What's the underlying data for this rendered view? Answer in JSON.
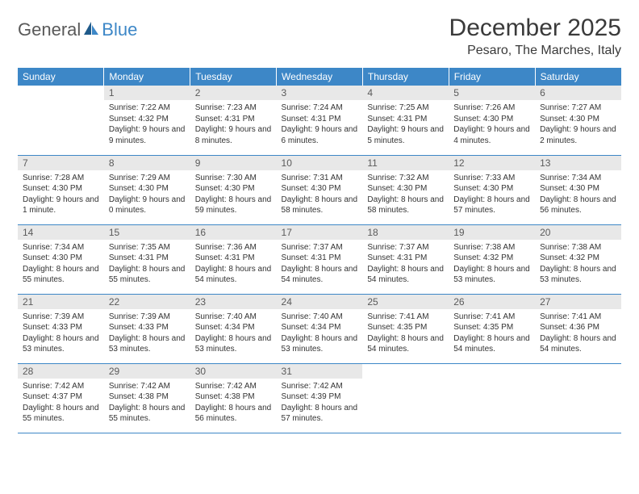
{
  "logo": {
    "text1": "General",
    "text2": "Blue"
  },
  "title": "December 2025",
  "location": "Pesaro, The Marches, Italy",
  "colors": {
    "header_bg": "#3d87c7",
    "header_text": "#ffffff",
    "daynum_bg": "#e8e8e8",
    "daynum_text": "#5a5a5a",
    "body_text": "#333333",
    "rule": "#3d87c7",
    "logo_gray": "#595959",
    "logo_blue": "#3d87c7"
  },
  "weekdays": [
    "Sunday",
    "Monday",
    "Tuesday",
    "Wednesday",
    "Thursday",
    "Friday",
    "Saturday"
  ],
  "weeks": [
    [
      {
        "empty": true
      },
      {
        "n": "1",
        "sunrise": "7:22 AM",
        "sunset": "4:32 PM",
        "daylight": "9 hours and 9 minutes."
      },
      {
        "n": "2",
        "sunrise": "7:23 AM",
        "sunset": "4:31 PM",
        "daylight": "9 hours and 8 minutes."
      },
      {
        "n": "3",
        "sunrise": "7:24 AM",
        "sunset": "4:31 PM",
        "daylight": "9 hours and 6 minutes."
      },
      {
        "n": "4",
        "sunrise": "7:25 AM",
        "sunset": "4:31 PM",
        "daylight": "9 hours and 5 minutes."
      },
      {
        "n": "5",
        "sunrise": "7:26 AM",
        "sunset": "4:30 PM",
        "daylight": "9 hours and 4 minutes."
      },
      {
        "n": "6",
        "sunrise": "7:27 AM",
        "sunset": "4:30 PM",
        "daylight": "9 hours and 2 minutes."
      }
    ],
    [
      {
        "n": "7",
        "sunrise": "7:28 AM",
        "sunset": "4:30 PM",
        "daylight": "9 hours and 1 minute."
      },
      {
        "n": "8",
        "sunrise": "7:29 AM",
        "sunset": "4:30 PM",
        "daylight": "9 hours and 0 minutes."
      },
      {
        "n": "9",
        "sunrise": "7:30 AM",
        "sunset": "4:30 PM",
        "daylight": "8 hours and 59 minutes."
      },
      {
        "n": "10",
        "sunrise": "7:31 AM",
        "sunset": "4:30 PM",
        "daylight": "8 hours and 58 minutes."
      },
      {
        "n": "11",
        "sunrise": "7:32 AM",
        "sunset": "4:30 PM",
        "daylight": "8 hours and 58 minutes."
      },
      {
        "n": "12",
        "sunrise": "7:33 AM",
        "sunset": "4:30 PM",
        "daylight": "8 hours and 57 minutes."
      },
      {
        "n": "13",
        "sunrise": "7:34 AM",
        "sunset": "4:30 PM",
        "daylight": "8 hours and 56 minutes."
      }
    ],
    [
      {
        "n": "14",
        "sunrise": "7:34 AM",
        "sunset": "4:30 PM",
        "daylight": "8 hours and 55 minutes."
      },
      {
        "n": "15",
        "sunrise": "7:35 AM",
        "sunset": "4:31 PM",
        "daylight": "8 hours and 55 minutes."
      },
      {
        "n": "16",
        "sunrise": "7:36 AM",
        "sunset": "4:31 PM",
        "daylight": "8 hours and 54 minutes."
      },
      {
        "n": "17",
        "sunrise": "7:37 AM",
        "sunset": "4:31 PM",
        "daylight": "8 hours and 54 minutes."
      },
      {
        "n": "18",
        "sunrise": "7:37 AM",
        "sunset": "4:31 PM",
        "daylight": "8 hours and 54 minutes."
      },
      {
        "n": "19",
        "sunrise": "7:38 AM",
        "sunset": "4:32 PM",
        "daylight": "8 hours and 53 minutes."
      },
      {
        "n": "20",
        "sunrise": "7:38 AM",
        "sunset": "4:32 PM",
        "daylight": "8 hours and 53 minutes."
      }
    ],
    [
      {
        "n": "21",
        "sunrise": "7:39 AM",
        "sunset": "4:33 PM",
        "daylight": "8 hours and 53 minutes."
      },
      {
        "n": "22",
        "sunrise": "7:39 AM",
        "sunset": "4:33 PM",
        "daylight": "8 hours and 53 minutes."
      },
      {
        "n": "23",
        "sunrise": "7:40 AM",
        "sunset": "4:34 PM",
        "daylight": "8 hours and 53 minutes."
      },
      {
        "n": "24",
        "sunrise": "7:40 AM",
        "sunset": "4:34 PM",
        "daylight": "8 hours and 53 minutes."
      },
      {
        "n": "25",
        "sunrise": "7:41 AM",
        "sunset": "4:35 PM",
        "daylight": "8 hours and 54 minutes."
      },
      {
        "n": "26",
        "sunrise": "7:41 AM",
        "sunset": "4:35 PM",
        "daylight": "8 hours and 54 minutes."
      },
      {
        "n": "27",
        "sunrise": "7:41 AM",
        "sunset": "4:36 PM",
        "daylight": "8 hours and 54 minutes."
      }
    ],
    [
      {
        "n": "28",
        "sunrise": "7:42 AM",
        "sunset": "4:37 PM",
        "daylight": "8 hours and 55 minutes."
      },
      {
        "n": "29",
        "sunrise": "7:42 AM",
        "sunset": "4:38 PM",
        "daylight": "8 hours and 55 minutes."
      },
      {
        "n": "30",
        "sunrise": "7:42 AM",
        "sunset": "4:38 PM",
        "daylight": "8 hours and 56 minutes."
      },
      {
        "n": "31",
        "sunrise": "7:42 AM",
        "sunset": "4:39 PM",
        "daylight": "8 hours and 57 minutes."
      },
      {
        "empty": true
      },
      {
        "empty": true
      },
      {
        "empty": true
      }
    ]
  ],
  "labels": {
    "sunrise": "Sunrise:",
    "sunset": "Sunset:",
    "daylight": "Daylight:"
  }
}
